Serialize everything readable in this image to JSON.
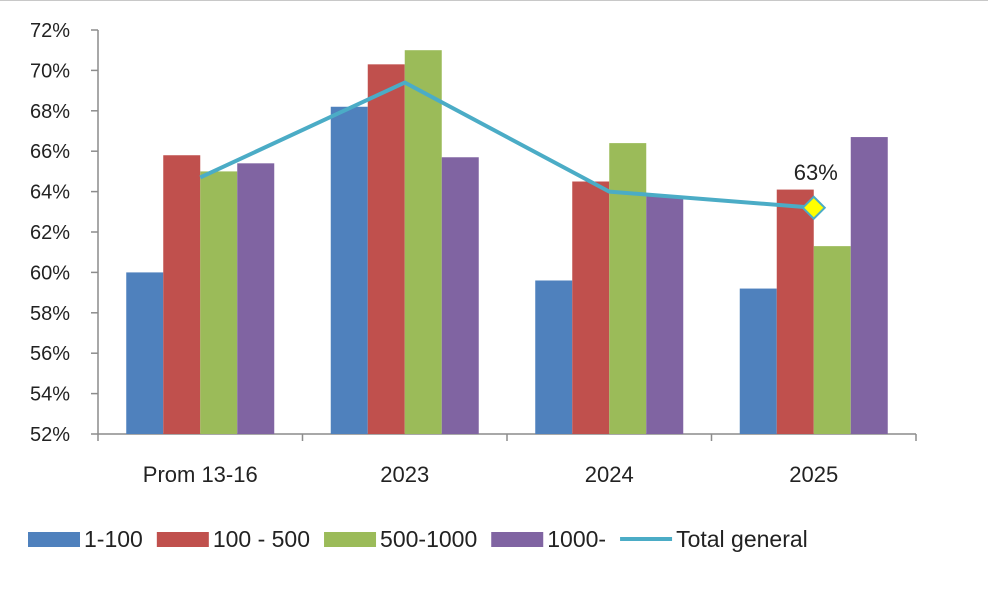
{
  "chart_data": {
    "type": "bar",
    "categories": [
      "Prom 13-16",
      "2023",
      "2024",
      "2025"
    ],
    "series": [
      {
        "name": "1-100",
        "values": [
          60.0,
          68.2,
          59.6,
          59.2
        ],
        "color": "#4f81bd"
      },
      {
        "name": "100 - 500",
        "values": [
          65.8,
          70.3,
          64.5,
          64.1
        ],
        "color": "#c0504d"
      },
      {
        "name": "500-1000",
        "values": [
          65.0,
          71.0,
          66.4,
          61.3
        ],
        "color": "#9bbb59"
      },
      {
        "name": "1000-",
        "values": [
          65.4,
          65.7,
          63.8,
          66.7
        ],
        "color": "#8064a2"
      }
    ],
    "line_series": {
      "name": "Total general",
      "type": "line",
      "values": [
        64.7,
        69.4,
        64.0,
        63.2
      ],
      "color": "#4bacc6",
      "highlight": {
        "index": 3,
        "label": "63%",
        "marker_fill": "#ffff00",
        "marker_stroke": "#4bacc6"
      }
    },
    "ylim": [
      52,
      72
    ],
    "yticks": [
      "52%",
      "54%",
      "56%",
      "58%",
      "60%",
      "62%",
      "64%",
      "66%",
      "68%",
      "70%",
      "72%"
    ],
    "grid": false,
    "legend_position": "bottom"
  }
}
